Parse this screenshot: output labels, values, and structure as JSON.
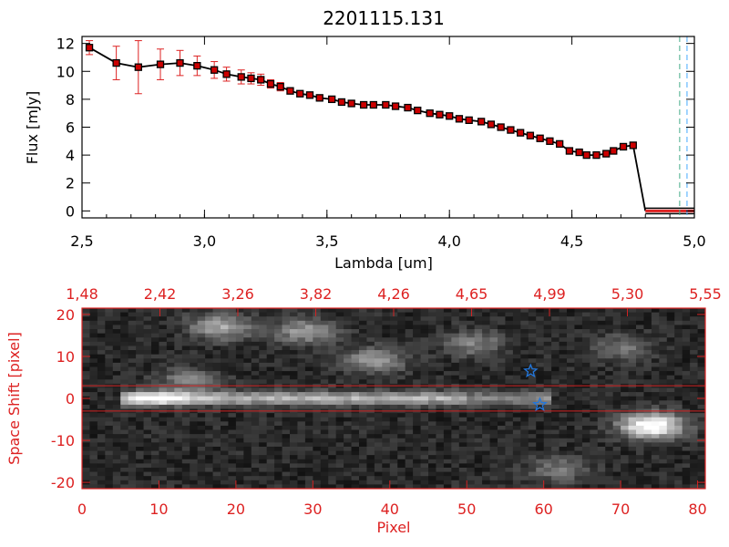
{
  "chart_data": [
    {
      "type": "line",
      "title": "2201115.131",
      "xlabel": "Lambda [um]",
      "ylabel": "Flux [mJy]",
      "xlim": [
        2.5,
        5.0
      ],
      "ylim": [
        -0.5,
        12.5
      ],
      "x_ticks": [
        "2.5",
        "3.0",
        "3.5",
        "4.0",
        "4.5",
        "5.0"
      ],
      "y_ticks": [
        "0",
        "2",
        "4",
        "6",
        "8",
        "10",
        "12"
      ],
      "series": [
        {
          "x": [
            2.53,
            2.64,
            2.73,
            2.82,
            2.9,
            2.97,
            3.04,
            3.09,
            3.15,
            3.19,
            3.23,
            3.27,
            3.31,
            3.35,
            3.39,
            3.43,
            3.47,
            3.52,
            3.56,
            3.6,
            3.65,
            3.69,
            3.74,
            3.78,
            3.83,
            3.87,
            3.92,
            3.96,
            4.0,
            4.04,
            4.08,
            4.13,
            4.17,
            4.21,
            4.25,
            4.29,
            4.33,
            4.37,
            4.41,
            4.45,
            4.49,
            4.53,
            4.56,
            4.6,
            4.64,
            4.67,
            4.71,
            4.75
          ],
          "y": [
            11.7,
            10.6,
            10.3,
            10.5,
            10.6,
            10.4,
            10.1,
            9.8,
            9.6,
            9.5,
            9.4,
            9.1,
            8.9,
            8.6,
            8.4,
            8.3,
            8.1,
            8.0,
            7.8,
            7.7,
            7.6,
            7.6,
            7.6,
            7.5,
            7.4,
            7.2,
            7.0,
            6.9,
            6.8,
            6.6,
            6.5,
            6.4,
            6.2,
            6.0,
            5.8,
            5.6,
            5.4,
            5.2,
            5.0,
            4.8,
            4.3,
            4.2,
            4.0,
            4.0,
            4.1,
            4.3,
            4.6,
            4.7
          ],
          "yerr": [
            0.5,
            1.2,
            1.9,
            1.1,
            0.9,
            0.7,
            0.6,
            0.5,
            0.5,
            0.4,
            0.4,
            0.3,
            0.3,
            0.2,
            0.2,
            0.2,
            0.2,
            0.2,
            0.2,
            0.2,
            0.2,
            0.2,
            0.2,
            0.2,
            0.2,
            0.2,
            0.2,
            0.2,
            0.2,
            0.2,
            0.2,
            0.2,
            0.2,
            0.2,
            0.2,
            0.2,
            0.2,
            0.2,
            0.2,
            0.2,
            0.2,
            0.2,
            0.2,
            0.2,
            0.2,
            0.2,
            0.2,
            0.2
          ],
          "color": "#000000",
          "marker_color": "#cc0000",
          "errorbar_color": "#dd2222"
        }
      ],
      "drop_to_zero": {
        "x_from": 4.75,
        "x_to": 4.8,
        "y": 0
      },
      "zero_segment": {
        "x": [
          4.8,
          5.0
        ],
        "y": 0,
        "color": "#dd2222"
      },
      "vertical_lines": [
        {
          "x": 4.94,
          "color": "#44aa88",
          "style": "dashed"
        },
        {
          "x": 4.97,
          "color": "#44aaff",
          "style": "dashed"
        }
      ],
      "grid": false
    },
    {
      "type": "heatmap",
      "xlabel": "Pixel",
      "ylabel": "Space Shift [pixel]",
      "xlim": [
        0,
        81
      ],
      "ylim": [
        -21.5,
        21.5
      ],
      "x_ticks": [
        "0",
        "10",
        "20",
        "30",
        "40",
        "50",
        "60",
        "70",
        "80"
      ],
      "y_ticks": [
        "20",
        "10",
        "0",
        "-10",
        "-20"
      ],
      "top_ticks": [
        "1.48",
        "2.42",
        "3.26",
        "3.82",
        "4.26",
        "4.65",
        "4.99",
        "5.30",
        "5.55"
      ],
      "colormap": "gray",
      "accent_color": "#d22222",
      "aperture_lines": [
        3,
        -3
      ],
      "markers": [
        {
          "symbol": "star",
          "x": 58.3,
          "y": 6.5,
          "color": "#2277dd"
        },
        {
          "symbol": "star",
          "x": 59.5,
          "y": -1.5,
          "color": "#2277dd"
        }
      ],
      "features": {
        "spectral_trace": {
          "row_center": 0,
          "x_start": 5,
          "x_end": 61,
          "peak_x": 10
        },
        "blobs": [
          {
            "x": 74,
            "y": -6.5,
            "intensity": 0.95
          },
          {
            "x": 18,
            "y": 17,
            "intensity": 0.5
          },
          {
            "x": 29,
            "y": 16,
            "intensity": 0.45
          },
          {
            "x": 38,
            "y": 9,
            "intensity": 0.45
          },
          {
            "x": 14,
            "y": 4,
            "intensity": 0.35
          },
          {
            "x": 51,
            "y": 13,
            "intensity": 0.35
          },
          {
            "x": 70,
            "y": 12,
            "intensity": 0.3
          },
          {
            "x": 62,
            "y": -17,
            "intensity": 0.3
          }
        ]
      }
    }
  ]
}
